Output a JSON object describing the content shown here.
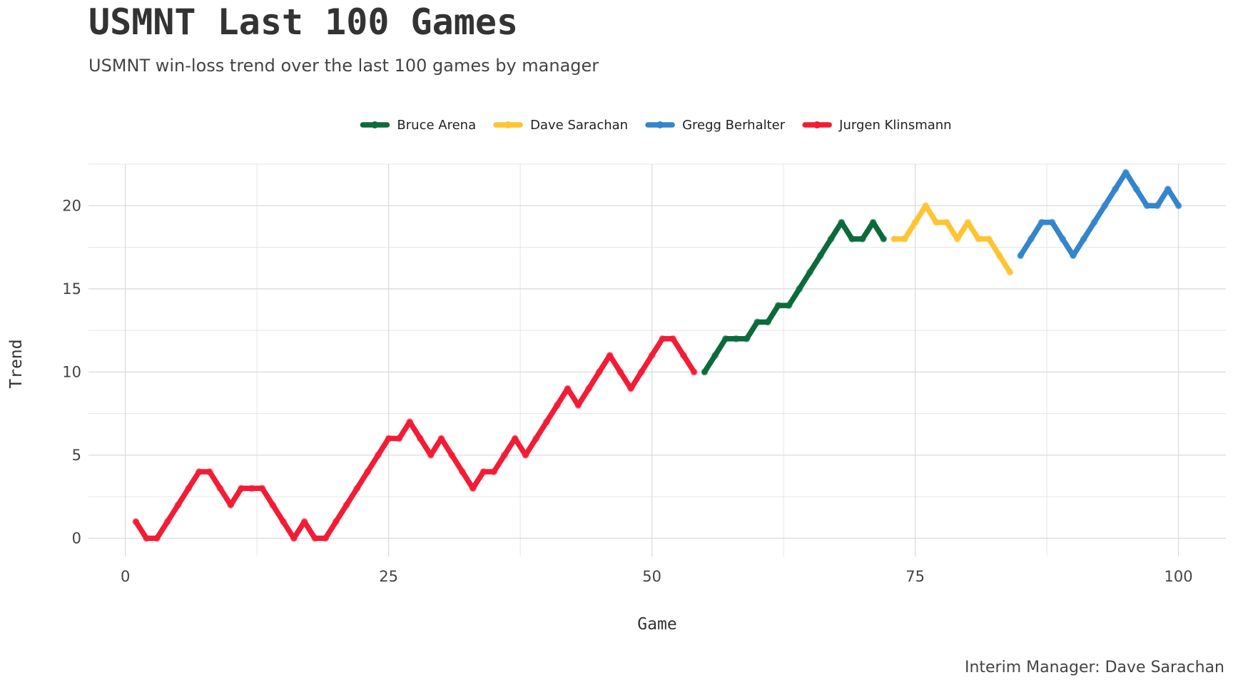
{
  "chart_data": {
    "type": "line",
    "title": "USMNT Last 100 Games",
    "subtitle": "USMNT win-loss trend over the last 100 games by manager",
    "caption": "Interim Manager: Dave Sarachan",
    "xlabel": "Game",
    "ylabel": "Trend",
    "xlim": [
      -3.5,
      104.5
    ],
    "ylim": [
      -1.1,
      22.5
    ],
    "xticks": [
      0,
      25,
      50,
      75,
      100
    ],
    "yticks": [
      0,
      5,
      10,
      15,
      20
    ],
    "grid": true,
    "legend_position": "top",
    "series": [
      {
        "name": "Bruce Arena",
        "color": "#0b6b3a",
        "x": [
          55,
          56,
          57,
          58,
          59,
          60,
          61,
          62,
          63,
          64,
          65,
          66,
          67,
          68,
          69,
          70,
          71,
          72
        ],
        "y": [
          10,
          11,
          12,
          12,
          12,
          13,
          13,
          14,
          14,
          15,
          16,
          17,
          18,
          19,
          18,
          18,
          19,
          18
        ]
      },
      {
        "name": "Dave Sarachan",
        "color": "#fdc534",
        "x": [
          73,
          74,
          75,
          76,
          77,
          78,
          79,
          80,
          81,
          82,
          83,
          84
        ],
        "y": [
          18,
          18,
          19,
          20,
          19,
          19,
          18,
          19,
          18,
          18,
          17,
          16
        ]
      },
      {
        "name": "Gregg Berhalter",
        "color": "#3385cc",
        "x": [
          85,
          86,
          87,
          88,
          89,
          90,
          91,
          92,
          93,
          94,
          95,
          96,
          97,
          98,
          99,
          100
        ],
        "y": [
          17,
          18,
          19,
          19,
          18,
          17,
          18,
          19,
          20,
          21,
          22,
          21,
          20,
          20,
          21,
          20
        ]
      },
      {
        "name": "Jurgen Klinsmann",
        "color": "#f31c35",
        "x": [
          1,
          2,
          3,
          4,
          5,
          6,
          7,
          8,
          9,
          10,
          11,
          12,
          13,
          14,
          15,
          16,
          17,
          18,
          19,
          20,
          21,
          22,
          23,
          24,
          25,
          26,
          27,
          28,
          29,
          30,
          31,
          32,
          33,
          34,
          35,
          36,
          37,
          38,
          39,
          40,
          41,
          42,
          43,
          44,
          45,
          46,
          47,
          48,
          49,
          50,
          51,
          52,
          53,
          54
        ],
        "y": [
          1,
          0,
          0,
          1,
          2,
          3,
          4,
          4,
          3,
          2,
          3,
          3,
          3,
          2,
          1,
          0,
          1,
          0,
          0,
          1,
          2,
          3,
          4,
          5,
          6,
          6,
          7,
          6,
          5,
          6,
          5,
          4,
          3,
          4,
          4,
          5,
          6,
          5,
          6,
          7,
          8,
          9,
          8,
          9,
          10,
          11,
          10,
          9,
          10,
          11,
          12,
          12,
          11,
          10
        ]
      }
    ]
  }
}
